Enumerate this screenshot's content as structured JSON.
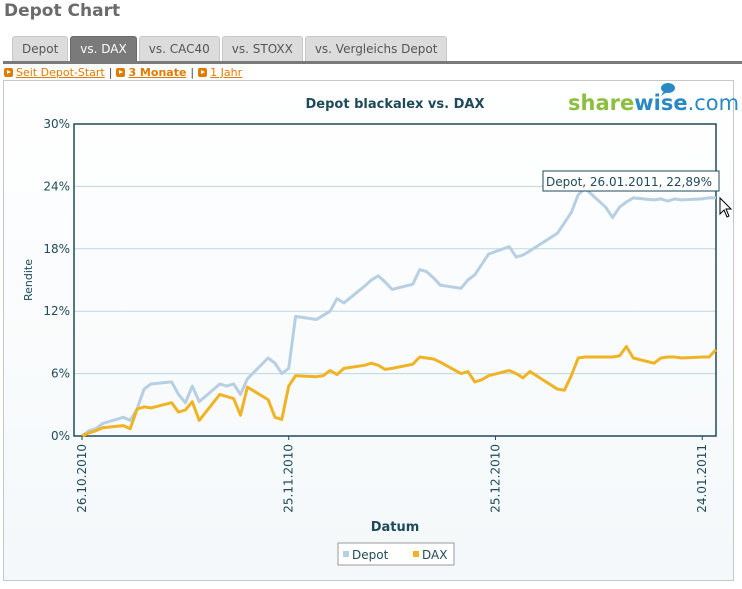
{
  "page": {
    "title": "Depot Chart",
    "tabs": [
      {
        "label": "Depot",
        "active": false
      },
      {
        "label": "vs. DAX",
        "active": true
      },
      {
        "label": "vs. CAC40",
        "active": false
      },
      {
        "label": "vs. STOXX",
        "active": false
      },
      {
        "label": "vs. Vergleichs Depot",
        "active": false
      }
    ],
    "ranges": [
      {
        "label": "Seit Depot-Start",
        "selected": false
      },
      {
        "label": "3 Monate",
        "selected": true
      },
      {
        "label": "1 Jahr",
        "selected": false
      }
    ],
    "range_separator": "|"
  },
  "logo": {
    "text_a": "share",
    "text_b": "wise",
    "text_c": ".com"
  },
  "tooltip": {
    "text": "Depot, 26.01.2011, 22,89%"
  },
  "colors": {
    "depot": "#b7cfe3",
    "dax": "#f0b326",
    "title": "#1f4a5a",
    "axis": "#1f4a5a",
    "grid": "#bcd8e4",
    "tab_active": "#7a7a7a",
    "link": "#e07b00"
  },
  "chart_data": {
    "type": "line",
    "title": "Depot blackalex vs. DAX",
    "xlabel": "Datum",
    "ylabel": "Rendite",
    "ylim": [
      0,
      30
    ],
    "yticks": [
      "0%",
      "6%",
      "12%",
      "18%",
      "24%",
      "30%"
    ],
    "xlim": [
      "2010-10-26",
      "2011-01-26"
    ],
    "xticks": [
      {
        "label": "26.10.2010",
        "date": "2010-10-26"
      },
      {
        "label": "25.11.2010",
        "date": "2010-11-25"
      },
      {
        "label": "25.12.2010",
        "date": "2010-12-25"
      },
      {
        "label": "24.01.2011",
        "date": "2011-01-24"
      }
    ],
    "grid": true,
    "legend_position": "bottom-center",
    "series": [
      {
        "name": "Depot",
        "x": [
          "2010-10-26",
          "2010-10-27",
          "2010-10-28",
          "2010-10-29",
          "2010-11-01",
          "2010-11-02",
          "2010-11-03",
          "2010-11-04",
          "2010-11-05",
          "2010-11-08",
          "2010-11-09",
          "2010-11-10",
          "2010-11-11",
          "2010-11-12",
          "2010-11-15",
          "2010-11-16",
          "2010-11-17",
          "2010-11-18",
          "2010-11-19",
          "2010-11-22",
          "2010-11-23",
          "2010-11-24",
          "2010-11-25",
          "2010-11-26",
          "2010-11-29",
          "2010-11-30",
          "2010-12-01",
          "2010-12-02",
          "2010-12-03",
          "2010-12-06",
          "2010-12-07",
          "2010-12-08",
          "2010-12-09",
          "2010-12-10",
          "2010-12-13",
          "2010-12-14",
          "2010-12-15",
          "2010-12-16",
          "2010-12-17",
          "2010-12-20",
          "2010-12-21",
          "2010-12-22",
          "2010-12-23",
          "2010-12-24",
          "2010-12-27",
          "2010-12-28",
          "2010-12-29",
          "2010-12-30",
          "2011-01-03",
          "2011-01-04",
          "2011-01-05",
          "2011-01-06",
          "2011-01-07",
          "2011-01-10",
          "2011-01-11",
          "2011-01-12",
          "2011-01-13",
          "2011-01-14",
          "2011-01-17",
          "2011-01-18",
          "2011-01-19",
          "2011-01-20",
          "2011-01-21",
          "2011-01-24",
          "2011-01-25",
          "2011-01-26"
        ],
        "y": [
          0.0,
          0.5,
          0.7,
          1.2,
          1.8,
          1.5,
          2.6,
          4.5,
          5.0,
          5.2,
          4.0,
          3.2,
          4.8,
          3.3,
          5.0,
          4.8,
          5.0,
          4.0,
          5.5,
          7.5,
          7.0,
          6.0,
          6.5,
          11.5,
          11.2,
          11.6,
          12.0,
          13.2,
          12.8,
          14.4,
          15.0,
          15.4,
          14.8,
          14.1,
          14.6,
          16.0,
          15.8,
          15.2,
          14.5,
          14.2,
          15.0,
          15.5,
          16.5,
          17.5,
          18.2,
          17.2,
          17.4,
          17.8,
          19.5,
          20.5,
          21.5,
          23.2,
          23.8,
          22.0,
          21.0,
          22.0,
          22.5,
          22.89,
          22.7,
          22.8,
          22.6,
          22.8,
          22.7,
          22.8,
          22.9,
          22.89
        ]
      },
      {
        "name": "DAX",
        "x": [
          "2010-10-26",
          "2010-10-27",
          "2010-10-28",
          "2010-10-29",
          "2010-11-01",
          "2010-11-02",
          "2010-11-03",
          "2010-11-04",
          "2010-11-05",
          "2010-11-08",
          "2010-11-09",
          "2010-11-10",
          "2010-11-11",
          "2010-11-12",
          "2010-11-15",
          "2010-11-16",
          "2010-11-17",
          "2010-11-18",
          "2010-11-19",
          "2010-11-22",
          "2010-11-23",
          "2010-11-24",
          "2010-11-25",
          "2010-11-26",
          "2010-11-29",
          "2010-11-30",
          "2010-12-01",
          "2010-12-02",
          "2010-12-03",
          "2010-12-06",
          "2010-12-07",
          "2010-12-08",
          "2010-12-09",
          "2010-12-10",
          "2010-12-13",
          "2010-12-14",
          "2010-12-15",
          "2010-12-16",
          "2010-12-17",
          "2010-12-20",
          "2010-12-21",
          "2010-12-22",
          "2010-12-23",
          "2010-12-24",
          "2010-12-27",
          "2010-12-28",
          "2010-12-29",
          "2010-12-30",
          "2011-01-03",
          "2011-01-04",
          "2011-01-05",
          "2011-01-06",
          "2011-01-07",
          "2011-01-10",
          "2011-01-11",
          "2011-01-12",
          "2011-01-13",
          "2011-01-14",
          "2011-01-17",
          "2011-01-18",
          "2011-01-19",
          "2011-01-20",
          "2011-01-21",
          "2011-01-24",
          "2011-01-25",
          "2011-01-26"
        ],
        "y": [
          0.0,
          0.3,
          0.5,
          0.8,
          1.0,
          0.7,
          2.6,
          2.8,
          2.7,
          3.2,
          2.3,
          2.5,
          3.3,
          1.5,
          4.0,
          3.8,
          3.6,
          2.0,
          4.7,
          3.5,
          1.8,
          1.6,
          4.8,
          5.8,
          5.7,
          5.8,
          6.3,
          5.9,
          6.5,
          6.8,
          7.0,
          6.8,
          6.4,
          6.5,
          6.9,
          7.6,
          7.5,
          7.4,
          7.1,
          6.0,
          6.2,
          5.2,
          5.4,
          5.8,
          6.3,
          6.0,
          5.6,
          6.2,
          4.5,
          4.4,
          5.8,
          7.5,
          7.6,
          7.6,
          7.6,
          7.7,
          8.6,
          7.5,
          7.0,
          7.5,
          7.6,
          7.6,
          7.5,
          7.6,
          7.6,
          8.3
        ]
      }
    ]
  }
}
